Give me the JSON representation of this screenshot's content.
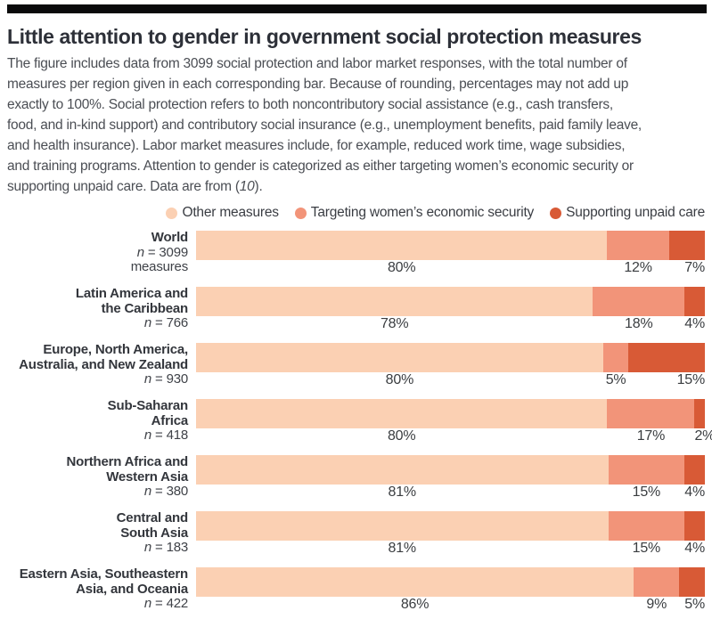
{
  "figure": {
    "title": "Little attention to gender in government social protection measures",
    "description": "The figure includes data from 3099 social protection and labor market responses, with the total number of\nmeasures per region given in each corresponding bar. Because of rounding, percentages may not add up\nexactly to 100%. Social protection refers to both noncontributory social assistance (e.g., cash transfers,\nfood, and in-kind support) and contributory social insurance (e.g., unemployment benefits, paid family leave,\nand health insurance). Labor market measures include, for example, reduced work time, wage subsidies,\nand training programs. Attention to gender is categorized as either targeting women’s economic security or\nsupporting unpaid care. Data are from (",
    "reference": "10",
    "description_suffix": ")."
  },
  "legend": {
    "items": [
      {
        "label": "Other measures",
        "color": "#FBD0B3"
      },
      {
        "label": "Targeting women’s economic security",
        "color": "#F29479"
      },
      {
        "label": "Supporting unpaid care",
        "color": "#D85A36"
      }
    ]
  },
  "colors": {
    "top_rule": "#0A0A0B",
    "segment_other_measures": "#FBD0B3",
    "segment_targeting_security": "#F29479",
    "segment_unpaid_care": "#D85A36"
  },
  "chart_data": {
    "type": "bar",
    "orientation": "horizontal-stacked",
    "title": "Little attention to gender in government social protection measures",
    "value_unit": "%",
    "legend_position": "top-right",
    "categories": [
      "World",
      "Latin America and the Caribbean",
      "Europe, North America, Australia, and New Zealand",
      "Sub-Saharan Africa",
      "Northern Africa and Western Asia",
      "Central and South Asia",
      "Eastern Asia, Southeastern Asia, and Oceania"
    ],
    "n_values": [
      3099,
      766,
      930,
      418,
      380,
      183,
      422
    ],
    "series": [
      {
        "name": "Other measures",
        "values": [
          80,
          78,
          80,
          80,
          81,
          81,
          86
        ]
      },
      {
        "name": "Targeting women’s economic security",
        "values": [
          12,
          18,
          5,
          17,
          15,
          15,
          9
        ]
      },
      {
        "name": "Supporting unpaid care",
        "values": [
          7,
          4,
          15,
          2,
          4,
          4,
          5
        ]
      }
    ],
    "rows": [
      {
        "name_lines": [
          "World"
        ],
        "n_italic": "n",
        "n_rest": " = 3099",
        "suffix_line": "measures",
        "values": [
          80,
          12,
          7
        ],
        "value_labels": [
          "80%",
          "12%",
          "7%"
        ]
      },
      {
        "name_lines": [
          "Latin America and",
          "the Caribbean"
        ],
        "n_italic": "n",
        "n_rest": " = 766",
        "values": [
          78,
          18,
          4
        ],
        "value_labels": [
          "78%",
          "18%",
          "4%"
        ]
      },
      {
        "name_lines": [
          "Europe, North America,",
          "Australia, and New Zealand"
        ],
        "n_italic": "n",
        "n_rest": " = 930",
        "values": [
          80,
          5,
          15
        ],
        "value_labels": [
          "80%",
          "5%",
          "15%"
        ]
      },
      {
        "name_lines": [
          "Sub-Saharan",
          "Africa"
        ],
        "n_italic": "n",
        "n_rest": " = 418",
        "values": [
          80,
          17,
          2
        ],
        "value_labels": [
          "80%",
          "17%",
          "2%"
        ]
      },
      {
        "name_lines": [
          "Northern Africa and",
          "Western Asia"
        ],
        "n_italic": "n",
        "n_rest": " = 380",
        "values": [
          81,
          15,
          4
        ],
        "value_labels": [
          "81%",
          "15%",
          "4%"
        ]
      },
      {
        "name_lines": [
          "Central and",
          "South Asia"
        ],
        "n_italic": "n",
        "n_rest": " = 183",
        "values": [
          81,
          15,
          4
        ],
        "value_labels": [
          "81%",
          "15%",
          "4%"
        ]
      },
      {
        "name_lines": [
          "Eastern Asia, Southeastern",
          "Asia, and Oceania"
        ],
        "n_italic": "n",
        "n_rest": " = 422",
        "values": [
          86,
          9,
          5
        ],
        "value_labels": [
          "86%",
          "9%",
          "5%"
        ]
      }
    ]
  }
}
